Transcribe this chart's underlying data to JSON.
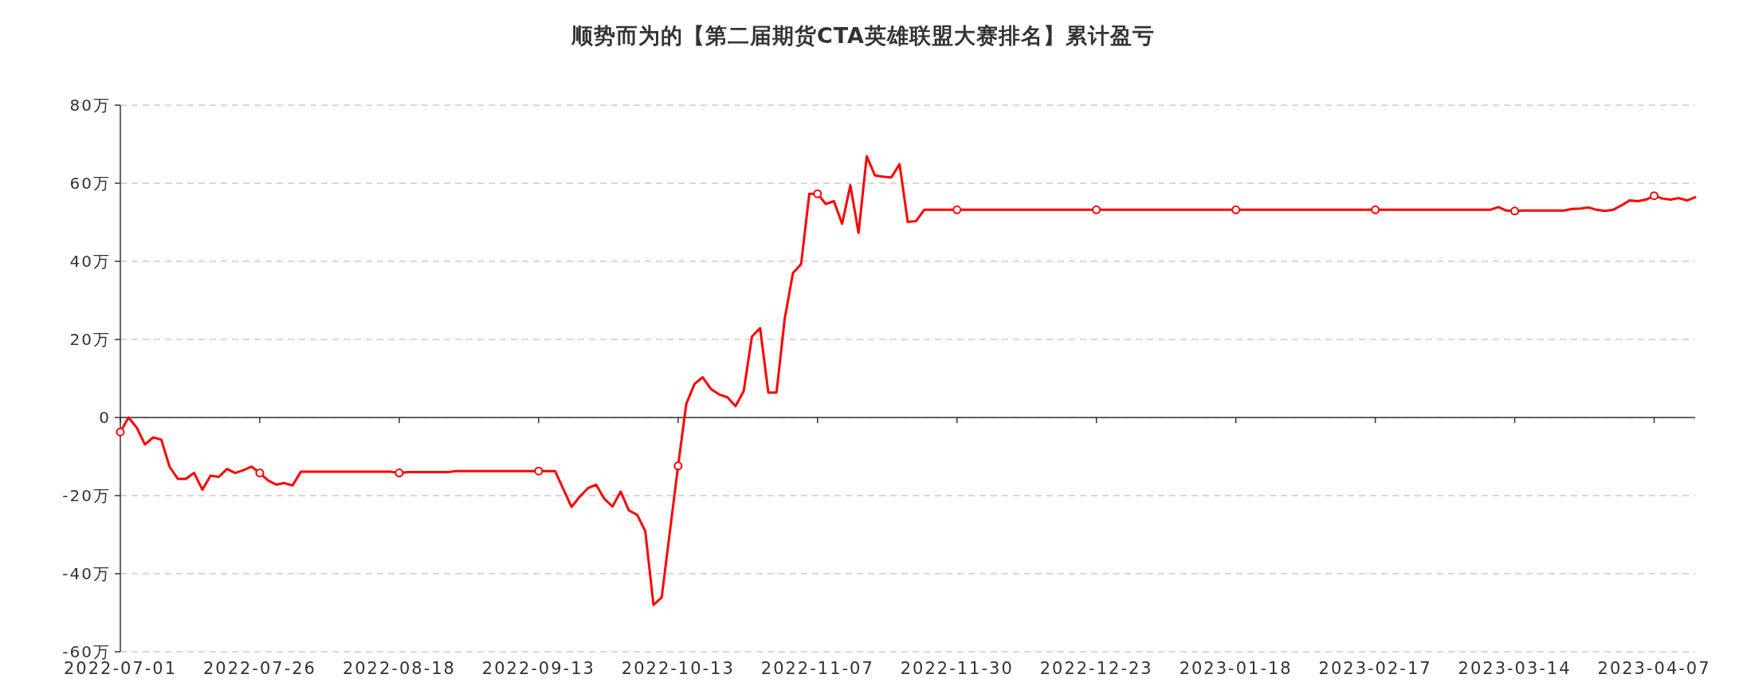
{
  "chart_data": {
    "type": "line",
    "title": "顺势而为的【第二届期货CTA英雄联盟大赛排名】累计盈亏",
    "categories": [
      "2022-07-01",
      null,
      null,
      null,
      null,
      null,
      null,
      null,
      null,
      null,
      null,
      null,
      null,
      null,
      null,
      null,
      null,
      "2022-07-26",
      null,
      null,
      null,
      null,
      null,
      null,
      null,
      null,
      null,
      null,
      null,
      null,
      null,
      null,
      null,
      null,
      "2022-08-18",
      null,
      null,
      null,
      null,
      null,
      null,
      null,
      null,
      null,
      null,
      null,
      null,
      null,
      null,
      null,
      null,
      "2022-09-13",
      null,
      null,
      null,
      null,
      null,
      null,
      null,
      null,
      null,
      null,
      null,
      null,
      null,
      null,
      null,
      null,
      "2022-10-13",
      null,
      null,
      null,
      null,
      null,
      null,
      null,
      null,
      null,
      null,
      null,
      null,
      null,
      null,
      null,
      null,
      "2022-11-07",
      null,
      null,
      null,
      null,
      null,
      null,
      null,
      null,
      null,
      null,
      null,
      null,
      null,
      null,
      null,
      null,
      "2022-11-30",
      null,
      null,
      null,
      null,
      null,
      null,
      null,
      null,
      null,
      null,
      null,
      null,
      null,
      null,
      null,
      null,
      "2022-12-23",
      null,
      null,
      null,
      null,
      null,
      null,
      null,
      null,
      null,
      null,
      null,
      null,
      null,
      null,
      null,
      null,
      "2023-01-18",
      null,
      null,
      null,
      null,
      null,
      null,
      null,
      null,
      null,
      null,
      null,
      null,
      null,
      null,
      null,
      null,
      "2023-02-17",
      null,
      null,
      null,
      null,
      null,
      null,
      null,
      null,
      null,
      null,
      null,
      null,
      null,
      null,
      null,
      null,
      "2023-03-14",
      null,
      null,
      null,
      null,
      null,
      null,
      null,
      null,
      null,
      null,
      null,
      null,
      null,
      null,
      null,
      null,
      "2023-04-07",
      null,
      null,
      null,
      null,
      null
    ],
    "series": [
      {
        "color": "#ff0000",
        "values": [
          -3.7,
          0,
          -2.6,
          -6.9,
          -5.1,
          -5.7,
          -12.6,
          -15.7,
          -15.7,
          -14.2,
          -18.5,
          -14.9,
          -15.2,
          -13.2,
          -14.2,
          -13.5,
          -12.6,
          -14.2,
          -16.1,
          -17.2,
          -16.8,
          -17.4,
          -13.9,
          -13.9,
          -13.9,
          -13.9,
          -13.9,
          -13.9,
          -13.9,
          -13.9,
          -13.9,
          -13.9,
          -13.9,
          -13.9,
          -14.2,
          -14.0,
          -14.0,
          -14.0,
          -14.0,
          -14.0,
          -14.0,
          -13.7,
          -13.7,
          -13.7,
          -13.7,
          -13.7,
          -13.7,
          -13.7,
          -13.7,
          -13.7,
          -13.7,
          -13.7,
          -13.7,
          -13.7,
          -18.3,
          -22.9,
          -20.3,
          -18.1,
          -17.2,
          -20.8,
          -22.8,
          -19.0,
          -23.8,
          -24.9,
          -29.1,
          -48.0,
          -46.1,
          -29.2,
          -12.4,
          3.5,
          8.6,
          10.3,
          7.3,
          5.9,
          5.2,
          2.9,
          6.8,
          20.7,
          22.9,
          6.4,
          6.4,
          25.3,
          37.0,
          39.3,
          57.3,
          57.3,
          54.7,
          55.4,
          49.6,
          59.5,
          47.3,
          66.9,
          62.0,
          61.7,
          61.5,
          64.9,
          50.1,
          50.3,
          53.2,
          53.2,
          53.2,
          53.2,
          53.2,
          53.2,
          53.2,
          53.2,
          53.2,
          53.2,
          53.2,
          53.2,
          53.2,
          53.2,
          53.2,
          53.2,
          53.2,
          53.2,
          53.2,
          53.2,
          53.2,
          53.2,
          53.2,
          53.2,
          53.2,
          53.2,
          53.2,
          53.2,
          53.2,
          53.2,
          53.2,
          53.2,
          53.2,
          53.2,
          53.2,
          53.2,
          53.2,
          53.2,
          53.2,
          53.2,
          53.2,
          53.2,
          53.2,
          53.2,
          53.2,
          53.2,
          53.2,
          53.2,
          53.2,
          53.2,
          53.2,
          53.2,
          53.2,
          53.2,
          53.2,
          53.2,
          53.2,
          53.2,
          53.2,
          53.2,
          53.2,
          53.2,
          53.2,
          53.2,
          53.2,
          53.2,
          53.2,
          53.2,
          53.2,
          53.2,
          53.9,
          53.0,
          52.9,
          53.0,
          53.0,
          53.0,
          53.0,
          53.0,
          53.0,
          53.4,
          53.5,
          53.8,
          53.2,
          52.9,
          53.2,
          54.3,
          55.6,
          55.4,
          55.8,
          56.8,
          56.1,
          55.8,
          56.2,
          55.6,
          56.4
        ]
      }
    ],
    "ylim": [
      -60,
      80
    ],
    "yticks": [
      {
        "value": -60,
        "label": "-60万"
      },
      {
        "value": -40,
        "label": "-40万"
      },
      {
        "value": -20,
        "label": "-20万"
      },
      0,
      {
        "value": 20,
        "label": "20万"
      },
      {
        "value": 40,
        "label": "40万"
      },
      {
        "value": 60,
        "label": "60万"
      },
      {
        "value": 80,
        "label": "80万"
      }
    ],
    "grid": "y",
    "line_style": "solid"
  }
}
